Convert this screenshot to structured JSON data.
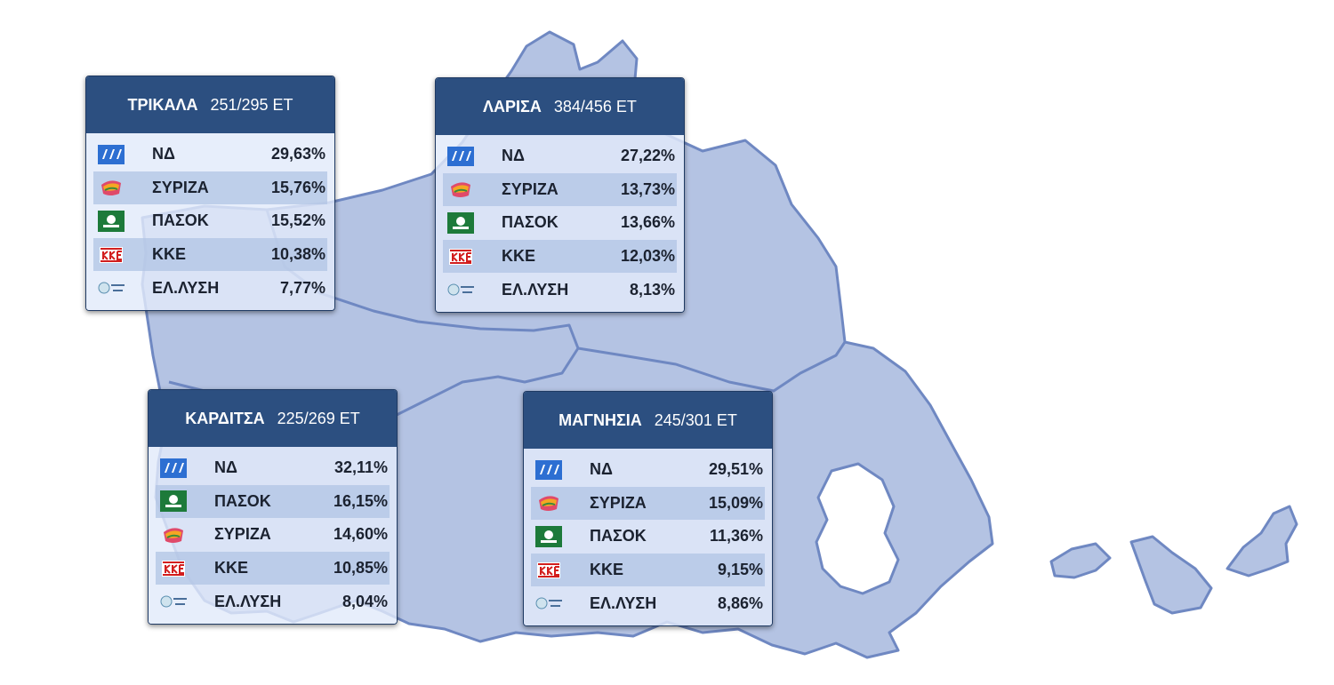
{
  "regions": [
    {
      "name": "ΤΡΙΚΑΛΑ",
      "count": "251/295 ΕΤ",
      "rows": [
        {
          "party": "ΝΔ",
          "share": "29,63%"
        },
        {
          "party": "ΣΥΡΙΖΑ",
          "share": "15,76%"
        },
        {
          "party": "ΠΑΣΟΚ",
          "share": "15,52%"
        },
        {
          "party": "ΚΚΕ",
          "share": "10,38%"
        },
        {
          "party": "ΕΛ.ΛΥΣΗ",
          "share": "7,77%"
        }
      ]
    },
    {
      "name": "ΛΑΡΙΣΑ",
      "count": "384/456 ΕΤ",
      "rows": [
        {
          "party": "ΝΔ",
          "share": "27,22%"
        },
        {
          "party": "ΣΥΡΙΖΑ",
          "share": "13,73%"
        },
        {
          "party": "ΠΑΣΟΚ",
          "share": "13,66%"
        },
        {
          "party": "ΚΚΕ",
          "share": "12,03%"
        },
        {
          "party": "ΕΛ.ΛΥΣΗ",
          "share": "8,13%"
        }
      ]
    },
    {
      "name": "ΚΑΡΔΙΤΣΑ",
      "count": "225/269 ΕΤ",
      "rows": [
        {
          "party": "ΝΔ",
          "share": "32,11%"
        },
        {
          "party": "ΠΑΣΟΚ",
          "share": "16,15%"
        },
        {
          "party": "ΣΥΡΙΖΑ",
          "share": "14,60%"
        },
        {
          "party": "ΚΚΕ",
          "share": "10,85%"
        },
        {
          "party": "ΕΛ.ΛΥΣΗ",
          "share": "8,04%"
        }
      ]
    },
    {
      "name": "ΜΑΓΝΗΣΙΑ",
      "count": "245/301 ΕΤ",
      "rows": [
        {
          "party": "ΝΔ",
          "share": "29,51%"
        },
        {
          "party": "ΣΥΡΙΖΑ",
          "share": "15,09%"
        },
        {
          "party": "ΠΑΣΟΚ",
          "share": "11,36%"
        },
        {
          "party": "ΚΚΕ",
          "share": "9,15%"
        },
        {
          "party": "ΕΛ.ΛΥΣΗ",
          "share": "8,86%"
        }
      ]
    }
  ]
}
